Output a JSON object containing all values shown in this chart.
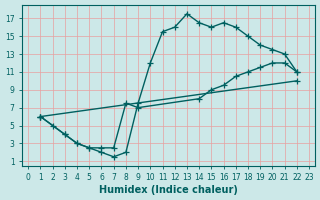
{
  "xlabel": "Humidex (Indice chaleur)",
  "xlim": [
    -0.5,
    23.5
  ],
  "ylim": [
    0.5,
    18.5
  ],
  "xticks": [
    0,
    1,
    2,
    3,
    4,
    5,
    6,
    7,
    8,
    9,
    10,
    11,
    12,
    13,
    14,
    15,
    16,
    17,
    18,
    19,
    20,
    21,
    22,
    23
  ],
  "yticks": [
    1,
    3,
    5,
    7,
    9,
    11,
    13,
    15,
    17
  ],
  "bg_color": "#cce8e8",
  "grid_color": "#e8a0a0",
  "line_color": "#006060",
  "curve1_x": [
    1,
    2,
    3,
    4,
    5,
    6,
    7,
    8,
    9,
    10,
    11,
    12,
    13,
    14,
    15,
    16,
    17,
    18,
    19,
    20,
    21,
    22
  ],
  "curve1_y": [
    6,
    5,
    4,
    3,
    2.5,
    2,
    1.5,
    2,
    7.5,
    12,
    15.5,
    16,
    17.5,
    16.5,
    16,
    16.5,
    16,
    15,
    14,
    13.5,
    13,
    11
  ],
  "curve2_x": [
    1,
    3,
    4,
    5,
    6,
    7,
    8,
    9,
    14,
    15,
    16,
    17,
    18,
    19,
    20,
    21,
    22
  ],
  "curve2_y": [
    6,
    4,
    3,
    2.5,
    2.5,
    2.5,
    7.5,
    7,
    8,
    9,
    9.5,
    10.5,
    11,
    11.5,
    12,
    12,
    11
  ],
  "curve3_x": [
    1,
    22
  ],
  "curve3_y": [
    6,
    10
  ],
  "linewidth": 1.0,
  "markersize": 4
}
